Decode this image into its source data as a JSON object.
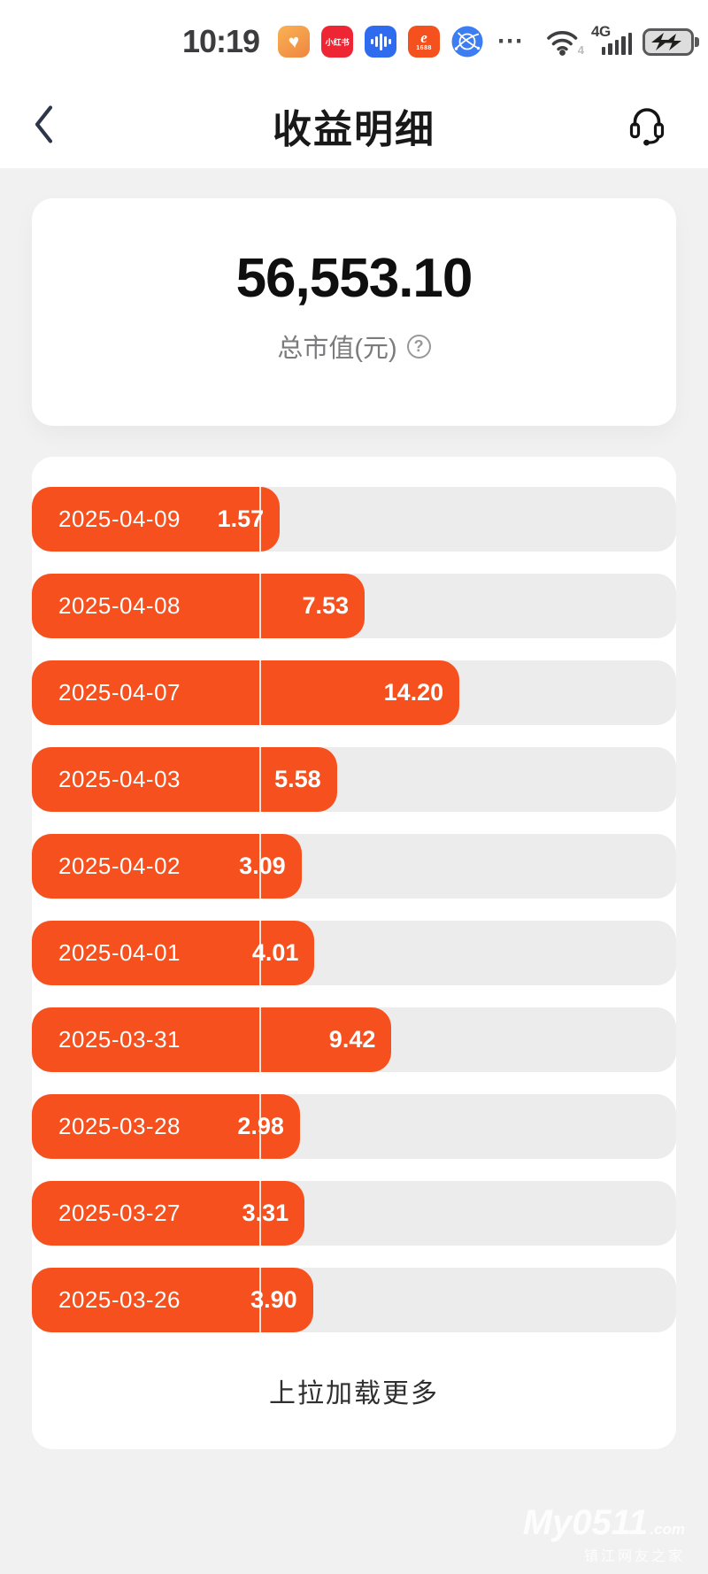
{
  "status_bar": {
    "time": "10:19",
    "more": "⋯",
    "app_icons": [
      {
        "name": "health-app-icon",
        "glyph": "♥"
      },
      {
        "name": "xiaohongshu-app-icon",
        "label": "小红书"
      },
      {
        "name": "voice-app-icon"
      },
      {
        "name": "alibaba-1688-app-icon",
        "swirl": "e",
        "label": "1688"
      },
      {
        "name": "globe-app-icon"
      }
    ],
    "network": {
      "wifi_sub": "4",
      "type": "4G"
    }
  },
  "header": {
    "title": "收益明细"
  },
  "summary": {
    "value": "56,553.10",
    "label": "总市值(元)",
    "help_glyph": "?"
  },
  "chart_data": {
    "type": "bar",
    "orientation": "horizontal",
    "title": "收益明细",
    "xlabel": "",
    "ylabel": "",
    "categories": [
      "2025-04-09",
      "2025-04-08",
      "2025-04-07",
      "2025-04-03",
      "2025-04-02",
      "2025-04-01",
      "2025-03-31",
      "2025-03-28",
      "2025-03-27",
      "2025-03-26"
    ],
    "values": [
      1.57,
      7.53,
      14.2,
      5.58,
      3.09,
      4.01,
      9.42,
      2.98,
      3.31,
      3.9
    ],
    "value_labels": [
      "1.57",
      "7.53",
      "14.20",
      "5.58",
      "3.09",
      "4.01",
      "9.42",
      "2.98",
      "3.31",
      "3.90"
    ],
    "bar_color": "#f5501e",
    "track_color": "#ececec",
    "gridline_pct": 35.3,
    "grid": "single-vertical-white-line",
    "legend": "none"
  },
  "footer": {
    "load_more": "上拉加载更多"
  },
  "watermark": {
    "line1": "My0511",
    "suffix": ".com",
    "line2": "镇江网友之家"
  }
}
